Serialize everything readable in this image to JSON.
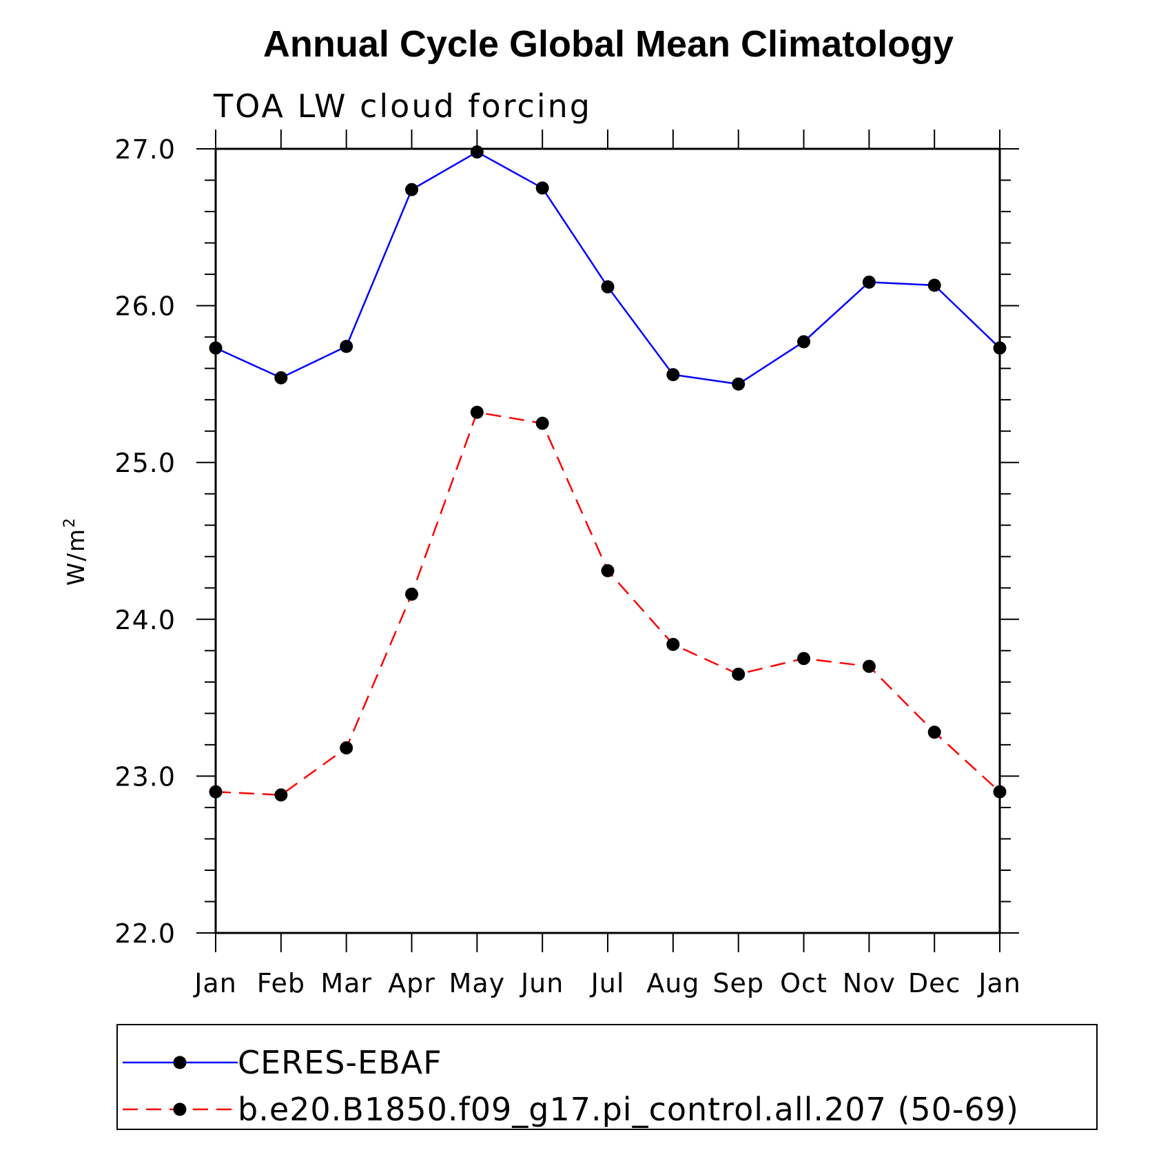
{
  "chart_data": {
    "type": "line",
    "title": "Annual Cycle Global Mean Climatology",
    "subtitle": "TOA LW cloud forcing",
    "xlabel": "",
    "ylabel": "W/m",
    "ylabel_superscript": "2",
    "categories": [
      "Jan",
      "Feb",
      "Mar",
      "Apr",
      "May",
      "Jun",
      "Jul",
      "Aug",
      "Sep",
      "Oct",
      "Nov",
      "Dec",
      "Jan"
    ],
    "ylim": [
      22.0,
      27.0
    ],
    "yticks": [
      "22.0",
      "23.0",
      "24.0",
      "25.0",
      "26.0",
      "27.0"
    ],
    "ytick_values": [
      22.0,
      23.0,
      24.0,
      25.0,
      26.0,
      27.0
    ],
    "y_minor_step": 0.2,
    "grid": false,
    "legend_position": "bottom",
    "series": [
      {
        "name": "CERES-EBAF",
        "color": "#0000ff",
        "dash": "solid",
        "marker_color": "#000000",
        "values": [
          25.73,
          25.54,
          25.74,
          26.74,
          26.98,
          26.75,
          26.12,
          25.56,
          25.5,
          25.77,
          26.15,
          26.13,
          25.73
        ]
      },
      {
        "name": "b.e20.B1850.f09_g17.pi_control.all.207 (50-69)",
        "color": "#ff0000",
        "dash": "dashed",
        "marker_color": "#000000",
        "values": [
          22.9,
          22.88,
          23.18,
          24.16,
          25.32,
          25.25,
          24.31,
          23.84,
          23.65,
          23.75,
          23.7,
          23.28,
          22.9
        ]
      }
    ]
  }
}
